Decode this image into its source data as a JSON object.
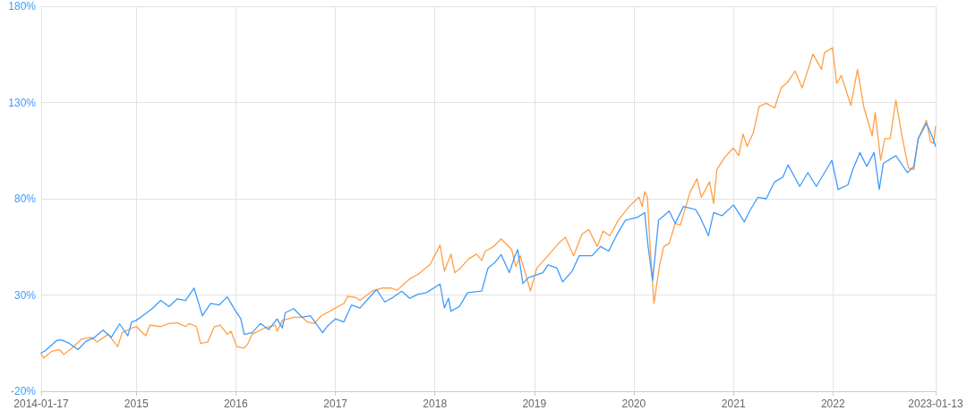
{
  "chart_data": {
    "type": "line",
    "marker": "none",
    "line_style": "solid",
    "grid": true,
    "xlim": [
      "2014-01-17",
      "2023-01-13"
    ],
    "xticks": [
      {
        "value": "2014-01-17",
        "label": "2014-01-17"
      },
      {
        "value": "2015-01-01",
        "label": "2015"
      },
      {
        "value": "2016-01-01",
        "label": "2016"
      },
      {
        "value": "2017-01-01",
        "label": "2017"
      },
      {
        "value": "2018-01-01",
        "label": "2018"
      },
      {
        "value": "2019-01-01",
        "label": "2019"
      },
      {
        "value": "2020-01-01",
        "label": "2020"
      },
      {
        "value": "2021-01-01",
        "label": "2021"
      },
      {
        "value": "2022-01-01",
        "label": "2022"
      },
      {
        "value": "2023-01-13",
        "label": "2023-01-13"
      }
    ],
    "ylim": [
      -20,
      180
    ],
    "yticks": [
      {
        "value": -20,
        "label": "-20%"
      },
      {
        "value": 30,
        "label": "30%"
      },
      {
        "value": 80,
        "label": "80%"
      },
      {
        "value": 130,
        "label": "130%"
      },
      {
        "value": 180,
        "label": "180%"
      }
    ],
    "series": [
      {
        "color": "#ff9f45",
        "x": [
          "2014-01-17",
          "2014-01-27",
          "2014-02-25",
          "2014-03-25",
          "2014-04-10",
          "2014-05-10",
          "2014-06-15",
          "2014-07-20",
          "2014-08-10",
          "2014-09-20",
          "2014-10-25",
          "2014-11-10",
          "2014-12-15",
          "2015-01-01",
          "2015-02-05",
          "2015-02-20",
          "2015-04-01",
          "2015-05-01",
          "2015-06-01",
          "2015-07-01",
          "2015-07-15",
          "2015-08-10",
          "2015-08-25",
          "2015-09-20",
          "2015-10-15",
          "2015-11-05",
          "2015-12-01",
          "2015-12-15",
          "2016-01-05",
          "2016-02-01",
          "2016-02-15",
          "2016-03-01",
          "2016-04-15",
          "2016-05-25",
          "2016-06-01",
          "2016-06-20",
          "2016-08-01",
          "2016-09-01",
          "2016-09-20",
          "2016-10-15",
          "2016-11-10",
          "2017-01-01",
          "2017-02-01",
          "2017-02-15",
          "2017-03-15",
          "2017-04-01",
          "2017-05-15",
          "2017-06-20",
          "2017-07-25",
          "2017-08-15",
          "2017-10-01",
          "2017-11-01",
          "2017-12-15",
          "2018-01-20",
          "2018-02-05",
          "2018-03-01",
          "2018-03-15",
          "2018-04-05",
          "2018-05-05",
          "2018-06-03",
          "2018-06-22",
          "2018-07-05",
          "2018-08-05",
          "2018-09-01",
          "2018-10-10",
          "2018-10-25",
          "2018-11-10",
          "2018-11-25",
          "2018-12-18",
          "2019-01-10",
          "2019-02-20",
          "2019-04-05",
          "2019-04-25",
          "2019-05-25",
          "2019-06-25",
          "2019-07-20",
          "2019-08-20",
          "2019-09-10",
          "2019-10-05",
          "2019-11-05",
          "2019-12-15",
          "2020-01-20",
          "2020-02-01",
          "2020-02-10",
          "2020-02-20",
          "2020-02-28",
          "2020-03-15",
          "2020-04-05",
          "2020-04-20",
          "2020-05-10",
          "2020-06-01",
          "2020-06-20",
          "2020-07-25",
          "2020-08-20",
          "2020-09-05",
          "2020-10-05",
          "2020-10-20",
          "2020-11-01",
          "2020-11-30",
          "2021-01-01",
          "2021-01-20",
          "2021-02-05",
          "2021-02-20",
          "2021-03-15",
          "2021-04-05",
          "2021-05-01",
          "2021-06-01",
          "2021-06-25",
          "2021-07-20",
          "2021-08-15",
          "2021-09-10",
          "2021-10-20",
          "2021-11-20",
          "2021-12-01",
          "2021-12-30",
          "2022-01-15",
          "2022-02-01",
          "2022-03-08",
          "2022-04-01",
          "2022-04-25",
          "2022-05-25",
          "2022-06-05",
          "2022-06-25",
          "2022-07-10",
          "2022-07-30",
          "2022-08-20",
          "2022-09-10",
          "2022-10-05",
          "2022-10-25",
          "2022-11-10",
          "2022-12-10",
          "2022-12-25",
          "2023-01-05",
          "2023-01-13"
        ],
        "values": [
          -0.5,
          -2.7,
          0.8,
          1.6,
          -0.8,
          2.4,
          7.2,
          8,
          5.6,
          9.6,
          3.2,
          10.4,
          12.8,
          13.6,
          8.8,
          14.4,
          13.6,
          15.2,
          15.5,
          13.6,
          15.2,
          13.6,
          4.8,
          5.6,
          13.6,
          14.4,
          9.6,
          11.2,
          3.2,
          2.4,
          4.8,
          9.6,
          12.8,
          14.4,
          11.2,
          16.8,
          18.4,
          18.4,
          16,
          15.2,
          19.2,
          23.2,
          25.6,
          29.3,
          28.8,
          27.2,
          32,
          33.6,
          33.6,
          32.5,
          38.4,
          40.8,
          45.9,
          56,
          42.4,
          51.2,
          41.6,
          44,
          48.8,
          51.2,
          48,
          52.8,
          55.2,
          59.2,
          53.6,
          44.8,
          50.4,
          43.2,
          32,
          44,
          50.4,
          57.6,
          60,
          50.4,
          61.6,
          64,
          55.2,
          63.2,
          60.8,
          68.8,
          76,
          80.8,
          76,
          83.7,
          80.8,
          60,
          25.6,
          45.6,
          55.2,
          56.8,
          67.2,
          66.4,
          83.2,
          90.4,
          80.8,
          88.8,
          77.6,
          95.2,
          101.6,
          106.4,
          102.4,
          113.6,
          107.2,
          114.4,
          128,
          129.6,
          127.2,
          137.6,
          140.8,
          146.4,
          137.6,
          155.2,
          147.2,
          156,
          158.4,
          140,
          144,
          128.4,
          147.2,
          127.2,
          112.8,
          124.8,
          100,
          111.2,
          111.2,
          131.2,
          113.6,
          96,
          95.2,
          111.2,
          120.8,
          109.6,
          108.8,
          117.6
        ]
      },
      {
        "color": "#3d9bff",
        "x": [
          "2014-01-17",
          "2014-02-01",
          "2014-03-15",
          "2014-04-01",
          "2014-05-01",
          "2014-06-01",
          "2014-07-01",
          "2014-08-01",
          "2014-09-01",
          "2014-10-01",
          "2014-11-01",
          "2014-12-01",
          "2014-12-15",
          "2015-01-01",
          "2015-02-01",
          "2015-03-01",
          "2015-04-01",
          "2015-05-01",
          "2015-06-01",
          "2015-07-01",
          "2015-08-01",
          "2015-08-20",
          "2015-09-01",
          "2015-10-01",
          "2015-11-01",
          "2015-12-01",
          "2016-01-01",
          "2016-01-20",
          "2016-02-01",
          "2016-03-01",
          "2016-04-01",
          "2016-05-01",
          "2016-06-01",
          "2016-06-20",
          "2016-07-01",
          "2016-08-01",
          "2016-09-01",
          "2016-10-01",
          "2016-11-15",
          "2016-12-01",
          "2017-01-01",
          "2017-02-01",
          "2017-03-01",
          "2017-04-01",
          "2017-05-01",
          "2017-06-01",
          "2017-07-01",
          "2017-08-01",
          "2017-09-01",
          "2017-10-01",
          "2017-11-01",
          "2017-12-01",
          "2018-01-20",
          "2018-02-05",
          "2018-02-20",
          "2018-03-01",
          "2018-04-01",
          "2018-05-01",
          "2018-06-22",
          "2018-07-15",
          "2018-08-10",
          "2018-09-01",
          "2018-10-01",
          "2018-10-20",
          "2018-11-01",
          "2018-11-20",
          "2018-12-10",
          "2019-02-01",
          "2019-02-20",
          "2019-03-25",
          "2019-04-15",
          "2019-05-20",
          "2019-06-15",
          "2019-08-01",
          "2019-09-01",
          "2019-10-01",
          "2019-11-01",
          "2019-12-01",
          "2020-01-15",
          "2020-02-10",
          "2020-02-22",
          "2020-03-10",
          "2020-04-01",
          "2020-05-10",
          "2020-06-01",
          "2020-07-01",
          "2020-08-15",
          "2020-09-01",
          "2020-10-01",
          "2020-10-20",
          "2020-11-20",
          "2021-01-01",
          "2021-02-10",
          "2021-03-01",
          "2021-04-01",
          "2021-05-01",
          "2021-06-01",
          "2021-07-01",
          "2021-07-20",
          "2021-09-01",
          "2021-10-01",
          "2021-11-01",
          "2021-12-28",
          "2022-01-20",
          "2022-02-25",
          "2022-03-15",
          "2022-04-10",
          "2022-05-05",
          "2022-06-01",
          "2022-06-20",
          "2022-07-05",
          "2022-08-20",
          "2022-10-01",
          "2022-10-25",
          "2022-11-10",
          "2022-12-10",
          "2022-12-30",
          "2023-01-13"
        ],
        "values": [
          0,
          1,
          6.4,
          6.7,
          4.8,
          1.6,
          6,
          8,
          11.7,
          8,
          15,
          8.8,
          16,
          16.8,
          20,
          23,
          27.2,
          24,
          28,
          27.2,
          33.6,
          24.8,
          19.2,
          25.6,
          24.8,
          29,
          21.6,
          17.6,
          9.6,
          10.4,
          15.2,
          12,
          17.6,
          12.8,
          20.8,
          22.9,
          18.4,
          19.2,
          10.4,
          13.6,
          17.6,
          16,
          24.8,
          23.2,
          28,
          32.8,
          26.4,
          28.8,
          32,
          28.3,
          30.4,
          31.2,
          35.7,
          23.2,
          28.3,
          21.6,
          24,
          31.2,
          32,
          44,
          47,
          51,
          41.6,
          49.6,
          53.6,
          36,
          39,
          41.6,
          45.6,
          44,
          36.8,
          42.4,
          50.4,
          50.4,
          55.2,
          52.8,
          61.6,
          68.8,
          70.4,
          72.8,
          56,
          37.6,
          68.8,
          73.6,
          67.2,
          76,
          74.4,
          70.4,
          60.8,
          72.8,
          71.2,
          76.8,
          68,
          73.6,
          80.8,
          80,
          88.8,
          91.2,
          97.6,
          86.4,
          93.6,
          86.4,
          100,
          84.8,
          87.2,
          95.2,
          104,
          96.8,
          104,
          84.8,
          98.4,
          102.4,
          93.6,
          96.8,
          111.2,
          119.2,
          112.8,
          107.2
        ]
      }
    ]
  }
}
